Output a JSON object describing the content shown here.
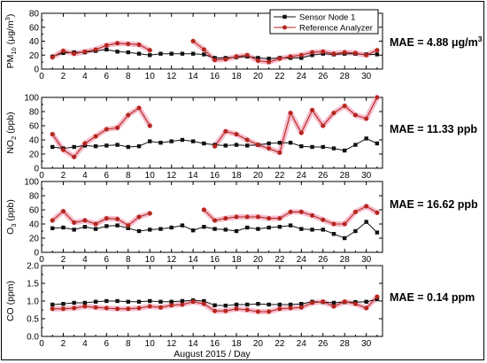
{
  "figure": {
    "xlabel": "August 2015 / Day",
    "legend": {
      "placement": "top-right",
      "entries": [
        "Sensor Node 1",
        "Reference Analyzer"
      ]
    }
  },
  "colors": {
    "sensor": "#111111",
    "reference": "#b5261e",
    "reference_band": "#f5b6c8",
    "axis": "#000000"
  },
  "chart_data": [
    {
      "type": "line",
      "panel": "PM10",
      "ylabel": "PM10 (μg/m³)",
      "ylabel_main": "PM",
      "ylabel_sub": "10",
      "ylabel_unit": " (μg/m",
      "ylabel_sup": "3",
      "ylabel_close": ")",
      "ylim": [
        0,
        80
      ],
      "yticks": [
        0,
        20,
        40,
        60,
        80
      ],
      "xlim": [
        0,
        31.5
      ],
      "xticks": [
        0,
        2,
        4,
        6,
        8,
        10,
        12,
        14,
        16,
        18,
        20,
        22,
        24,
        26,
        28,
        30
      ],
      "mae_label": "MAE = 4.88 μg/m³",
      "mae_main": "MAE = 4.88 μg/m",
      "mae_sup": "3",
      "x": [
        1,
        2,
        3,
        4,
        5,
        6,
        7,
        8,
        9,
        10,
        11,
        12,
        13,
        14,
        15,
        16,
        17,
        18,
        19,
        20,
        21,
        22,
        23,
        24,
        25,
        26,
        27,
        28,
        29,
        30,
        31
      ],
      "series": [
        {
          "name": "Sensor Node 1",
          "values": [
            18,
            23,
            24,
            24,
            26,
            28,
            25,
            24,
            22,
            20,
            22,
            22,
            22,
            22,
            21,
            16,
            16,
            17,
            18,
            16,
            15,
            16,
            16,
            16,
            20,
            22,
            21,
            22,
            22,
            21,
            21
          ]
        },
        {
          "name": "Reference Analyzer",
          "values": [
            17,
            26,
            22,
            25,
            28,
            34,
            37,
            36,
            35,
            27,
            null,
            null,
            null,
            40,
            28,
            13,
            14,
            18,
            20,
            12,
            10,
            15,
            18,
            20,
            24,
            25,
            22,
            24,
            23,
            20,
            27
          ]
        }
      ]
    },
    {
      "type": "line",
      "panel": "NO2",
      "ylabel": "NO2 (ppb)",
      "ylabel_main": "NO",
      "ylabel_sub": "2",
      "ylabel_unit": " (ppb)",
      "ylabel_sup": "",
      "ylabel_close": "",
      "ylim": [
        0,
        100
      ],
      "yticks": [
        0,
        20,
        40,
        60,
        80,
        100
      ],
      "xlim": [
        0,
        31.5
      ],
      "xticks": [
        0,
        2,
        4,
        6,
        8,
        10,
        12,
        14,
        16,
        18,
        20,
        22,
        24,
        26,
        28,
        30
      ],
      "mae_label": "MAE = 11.33 ppb",
      "mae_main": "MAE = 11.33 ppb",
      "mae_sup": "",
      "x": [
        1,
        2,
        3,
        4,
        5,
        6,
        7,
        8,
        9,
        10,
        11,
        12,
        13,
        14,
        15,
        16,
        17,
        18,
        19,
        20,
        21,
        22,
        23,
        24,
        25,
        26,
        27,
        28,
        29,
        30,
        31
      ],
      "series": [
        {
          "name": "Sensor Node 1",
          "values": [
            30,
            28,
            30,
            32,
            31,
            32,
            33,
            30,
            31,
            38,
            36,
            38,
            40,
            38,
            35,
            33,
            32,
            33,
            32,
            33,
            35,
            36,
            36,
            31,
            30,
            30,
            28,
            25,
            33,
            42,
            35
          ]
        },
        {
          "name": "Reference Analyzer",
          "values": [
            48,
            26,
            16,
            35,
            45,
            55,
            57,
            75,
            85,
            60,
            null,
            null,
            null,
            null,
            null,
            31,
            52,
            48,
            40,
            33,
            28,
            22,
            78,
            50,
            82,
            60,
            78,
            88,
            75,
            70,
            100
          ]
        }
      ]
    },
    {
      "type": "line",
      "panel": "O3",
      "ylabel": "O3 (ppb)",
      "ylabel_main": "O",
      "ylabel_sub": "3",
      "ylabel_unit": " (ppb)",
      "ylabel_sup": "",
      "ylabel_close": "",
      "ylim": [
        0,
        100
      ],
      "yticks": [
        0,
        20,
        40,
        60,
        80,
        100
      ],
      "xlim": [
        0,
        31.5
      ],
      "xticks": [
        0,
        2,
        4,
        6,
        8,
        10,
        12,
        14,
        16,
        18,
        20,
        22,
        24,
        26,
        28,
        30
      ],
      "mae_label": "MAE = 16.62 ppb",
      "mae_main": "MAE = 16.62 ppb",
      "mae_sup": "",
      "x": [
        1,
        2,
        3,
        4,
        5,
        6,
        7,
        8,
        9,
        10,
        11,
        12,
        13,
        14,
        15,
        16,
        17,
        18,
        19,
        20,
        21,
        22,
        23,
        24,
        25,
        26,
        27,
        28,
        29,
        30,
        31
      ],
      "series": [
        {
          "name": "Sensor Node 1",
          "values": [
            34,
            35,
            32,
            36,
            33,
            37,
            38,
            34,
            30,
            32,
            33,
            35,
            38,
            31,
            36,
            33,
            32,
            30,
            35,
            33,
            35,
            36,
            38,
            33,
            32,
            32,
            26,
            20,
            30,
            43,
            28
          ]
        },
        {
          "name": "Reference Analyzer",
          "values": [
            45,
            58,
            42,
            45,
            40,
            48,
            47,
            38,
            50,
            55,
            null,
            null,
            null,
            null,
            60,
            45,
            48,
            50,
            50,
            50,
            48,
            48,
            57,
            57,
            52,
            46,
            40,
            40,
            57,
            65,
            56
          ]
        }
      ]
    },
    {
      "type": "line",
      "panel": "CO",
      "ylabel": "CO (ppm)",
      "ylabel_main": "CO (ppm)",
      "ylabel_sub": "",
      "ylabel_unit": "",
      "ylabel_sup": "",
      "ylabel_close": "",
      "ylim": [
        0,
        2.0
      ],
      "yticks": [
        0.0,
        0.5,
        1.0,
        1.5,
        2.0
      ],
      "ytick_labels": [
        "0.0",
        "0.5",
        "1.0",
        "1.5",
        "2.0"
      ],
      "xlim": [
        0,
        31.5
      ],
      "xticks": [
        0,
        2,
        4,
        6,
        8,
        10,
        12,
        14,
        16,
        18,
        20,
        22,
        24,
        26,
        28,
        30
      ],
      "mae_label": "MAE = 0.14 ppm",
      "mae_main": "MAE = 0.14 ppm",
      "mae_sup": "",
      "x": [
        1,
        2,
        3,
        4,
        5,
        6,
        7,
        8,
        9,
        10,
        11,
        12,
        13,
        14,
        15,
        16,
        17,
        18,
        19,
        20,
        21,
        22,
        23,
        24,
        25,
        26,
        27,
        28,
        29,
        30,
        31
      ],
      "series": [
        {
          "name": "Sensor Node 1",
          "values": [
            0.9,
            0.92,
            0.95,
            0.95,
            0.98,
            1.0,
            1.0,
            0.98,
            0.98,
            1.0,
            0.98,
            0.98,
            1.0,
            1.02,
            1.0,
            0.88,
            0.87,
            0.9,
            0.9,
            0.92,
            0.9,
            0.9,
            0.9,
            0.92,
            0.98,
            0.97,
            0.95,
            0.97,
            0.97,
            0.98,
            1.05
          ]
        },
        {
          "name": "Reference Analyzer",
          "values": [
            0.78,
            0.78,
            0.8,
            0.85,
            0.82,
            0.8,
            0.78,
            0.78,
            0.8,
            0.85,
            0.82,
            0.88,
            0.9,
            0.98,
            0.92,
            0.72,
            0.72,
            0.78,
            0.75,
            0.7,
            0.7,
            0.78,
            0.8,
            0.82,
            0.95,
            0.98,
            0.85,
            0.98,
            0.92,
            0.8,
            1.12
          ]
        }
      ]
    }
  ]
}
